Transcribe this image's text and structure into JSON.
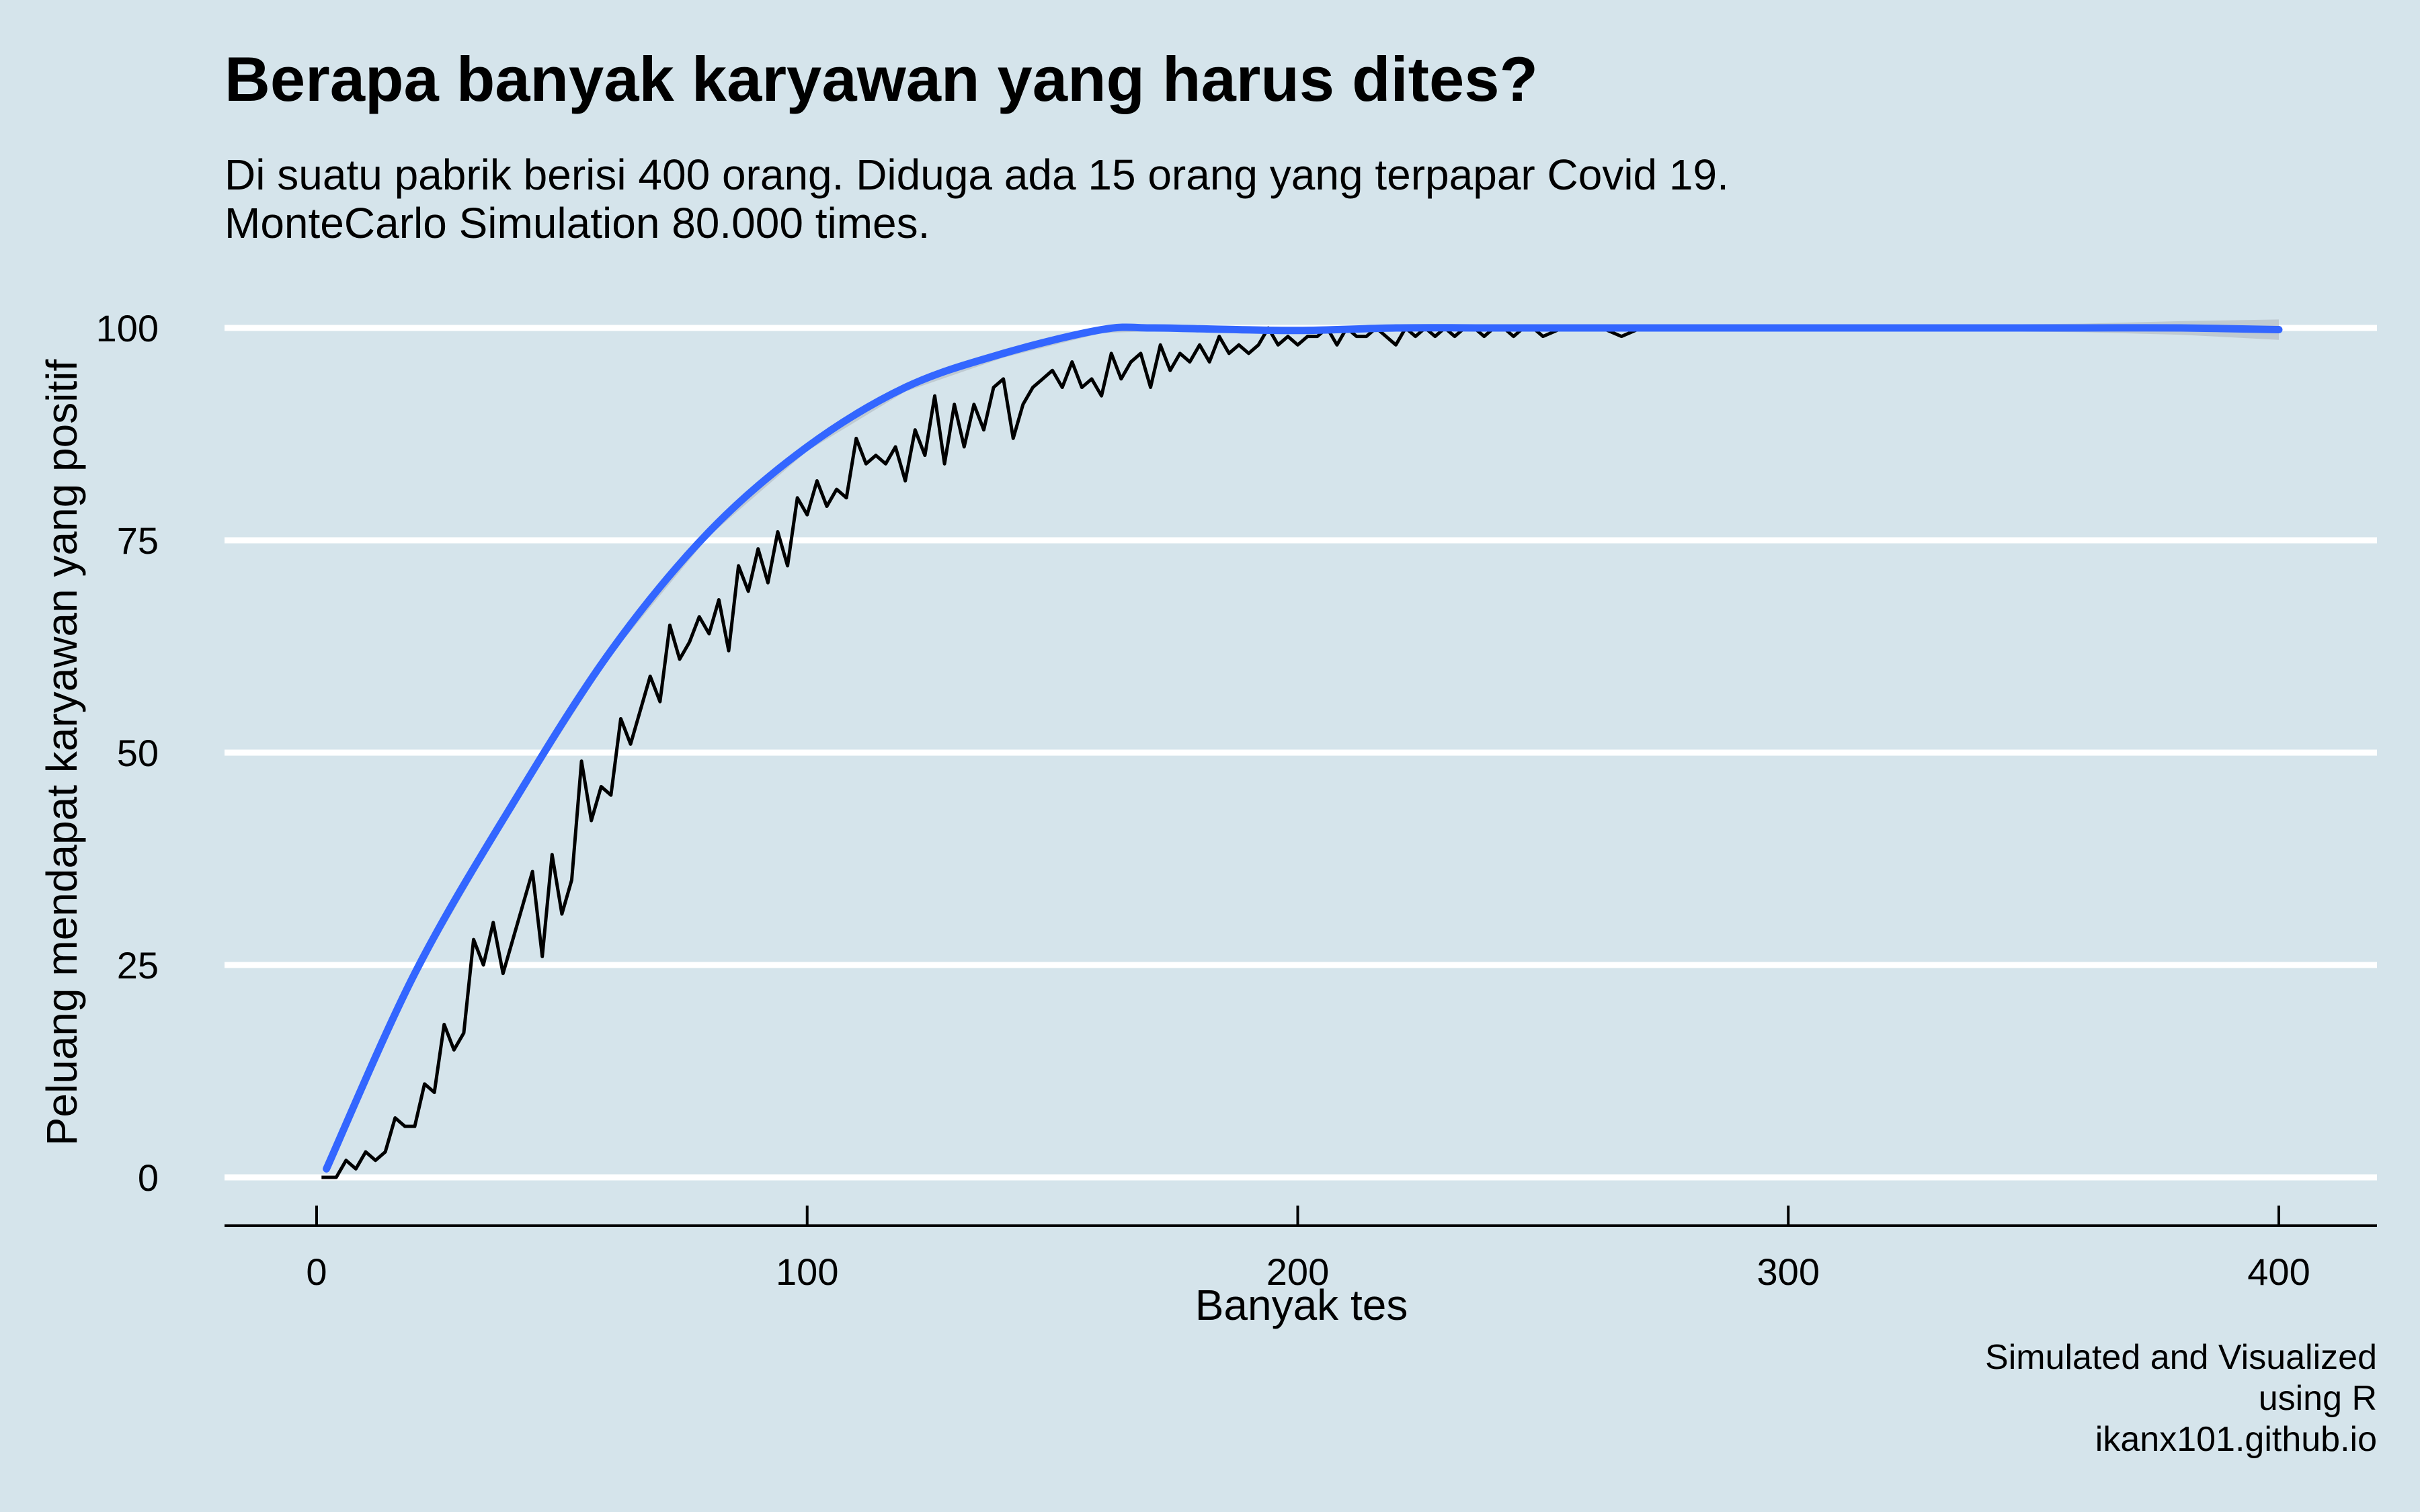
{
  "title": "Berapa banyak karyawan yang harus dites?",
  "subtitle": [
    "Di suatu pabrik berisi 400 orang. Diduga ada 15 orang yang terpapar Covid 19.",
    "MonteCarlo Simulation 80.000 times."
  ],
  "caption": [
    "Simulated and Visualized",
    "using R",
    "ikanx101.github.io"
  ],
  "colors": {
    "background": "#d5e4eb",
    "gridline": "#ffffff",
    "observed_line": "#000000",
    "smooth_line": "#3366ff",
    "confidence_band": "#b9c3cb"
  },
  "chart_data": {
    "type": "line",
    "xlabel": "Banyak tes",
    "ylabel": "Peluang mendapat karyawan yang positif",
    "xlim": [
      0,
      400
    ],
    "ylim": [
      0,
      100
    ],
    "x_ticks": [
      0,
      100,
      200,
      300,
      400
    ],
    "y_ticks": [
      0,
      25,
      50,
      75,
      100
    ],
    "grid": "horizontal major gridlines",
    "legend": "none",
    "series": [
      {
        "style": "black jagged line",
        "x": [
          1,
          4,
          6,
          8,
          10,
          12,
          14,
          16,
          18,
          20,
          22,
          24,
          26,
          28,
          30,
          32,
          34,
          36,
          38,
          40,
          42,
          44,
          46,
          48,
          50,
          52,
          54,
          56,
          58,
          60,
          62,
          64,
          66,
          68,
          70,
          72,
          74,
          76,
          78,
          80,
          82,
          84,
          86,
          88,
          90,
          92,
          94,
          96,
          98,
          100,
          102,
          104,
          106,
          108,
          110,
          112,
          114,
          116,
          118,
          120,
          122,
          124,
          126,
          128,
          130,
          132,
          134,
          136,
          138,
          140,
          142,
          144,
          146,
          148,
          150,
          152,
          154,
          156,
          158,
          160,
          162,
          164,
          166,
          168,
          170,
          172,
          174,
          176,
          178,
          180,
          182,
          184,
          186,
          188,
          190,
          192,
          194,
          196,
          198,
          200,
          202,
          204,
          206,
          208,
          210,
          212,
          214,
          216,
          218,
          220,
          222,
          224,
          226,
          228,
          230,
          232,
          234,
          236,
          238,
          240,
          242,
          244,
          246,
          248,
          250,
          254,
          258,
          262,
          266,
          270,
          274,
          278,
          282,
          290,
          300,
          310,
          320,
          330,
          340,
          350,
          360,
          370,
          380,
          390,
          400
        ],
        "y": [
          0,
          0,
          2,
          1,
          3,
          2,
          3,
          7,
          6,
          6,
          11,
          10,
          18,
          15,
          17,
          28,
          25,
          30,
          24,
          28,
          32,
          36,
          26,
          38,
          31,
          35,
          49,
          42,
          46,
          45,
          54,
          51,
          55,
          59,
          56,
          65,
          61,
          63,
          66,
          64,
          68,
          62,
          72,
          69,
          74,
          70,
          76,
          72,
          80,
          78,
          82,
          79,
          81,
          80,
          87,
          84,
          85,
          84,
          86,
          82,
          88,
          85,
          92,
          84,
          91,
          86,
          91,
          88,
          93,
          94,
          87,
          91,
          93,
          94,
          95,
          93,
          96,
          93,
          94,
          92,
          97,
          94,
          96,
          97,
          93,
          98,
          95,
          97,
          96,
          98,
          96,
          99,
          97,
          98,
          97,
          98,
          100,
          98,
          99,
          98,
          99,
          99,
          100,
          98,
          100,
          99,
          99,
          100,
          99,
          98,
          100,
          99,
          100,
          99,
          100,
          99,
          100,
          100,
          99,
          100,
          100,
          99,
          100,
          100,
          99,
          100,
          100,
          100,
          99,
          100,
          100,
          100,
          100,
          100,
          100,
          100,
          100,
          100,
          100,
          100,
          100,
          100,
          100,
          100,
          100
        ]
      },
      {
        "style": "blue smooth line with grey confidence band",
        "x": [
          2,
          20,
          40,
          60,
          80,
          100,
          120,
          140,
          160,
          170,
          180,
          200,
          220,
          240,
          260,
          280,
          300,
          320,
          340,
          360,
          380,
          400
        ],
        "y": [
          1,
          24,
          44,
          62,
          76,
          86,
          93,
          97,
          99.8,
          100,
          99.9,
          99.7,
          100,
          100,
          100,
          100,
          100,
          100,
          100,
          100,
          100,
          99.8
        ],
        "band_halfwidth": [
          0.6,
          0.5,
          0.5,
          0.5,
          0.5,
          0.5,
          0.5,
          0.5,
          0.4,
          0.4,
          0.4,
          0.4,
          0.3,
          0.3,
          0.3,
          0.3,
          0.3,
          0.3,
          0.4,
          0.5,
          0.8,
          1.2
        ]
      }
    ]
  }
}
